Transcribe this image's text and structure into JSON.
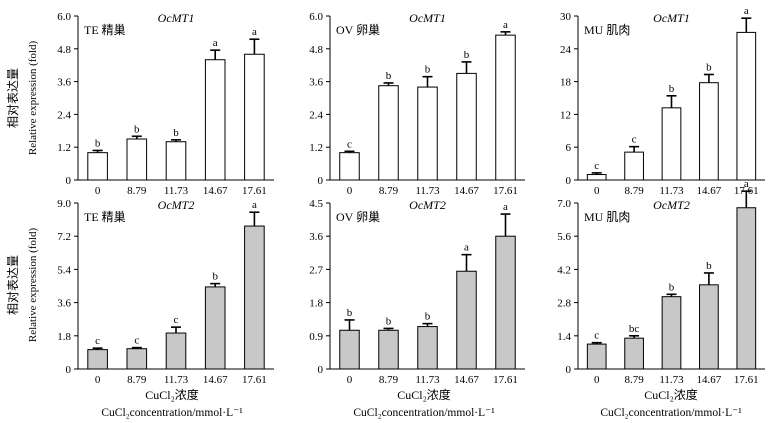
{
  "figure": {
    "y_label_cn": "相对表达量",
    "y_label_en": "Relative expression (fold)",
    "x_label_cn": "CuCl₂浓度",
    "x_label_en": "CuCl₂concentration/mmol·L⁻¹"
  },
  "chart_data": [
    {
      "type": "bar",
      "panel": "TE-OcMT1",
      "tissue_label": "TE 精巢",
      "gene_label": "OcMT1",
      "categories": [
        "0",
        "8.79",
        "11.73",
        "14.67",
        "17.61"
      ],
      "values": [
        1.0,
        1.5,
        1.4,
        4.4,
        4.6
      ],
      "errors": [
        0.08,
        0.1,
        0.07,
        0.35,
        0.55
      ],
      "letters": [
        "b",
        "b",
        "b",
        "a",
        "a"
      ],
      "ylim": [
        0,
        6.0
      ],
      "ticks": [
        "0",
        "1.2",
        "2.4",
        "3.6",
        "4.8",
        "6.0"
      ],
      "bar_color": "#ffffff"
    },
    {
      "type": "bar",
      "panel": "OV-OcMT1",
      "tissue_label": "OV 卵巢",
      "gene_label": "OcMT1",
      "categories": [
        "0",
        "8.79",
        "11.73",
        "14.67",
        "17.61"
      ],
      "values": [
        1.0,
        3.45,
        3.4,
        3.9,
        5.3
      ],
      "errors": [
        0.05,
        0.1,
        0.38,
        0.42,
        0.12
      ],
      "letters": [
        "c",
        "b",
        "b",
        "b",
        "a"
      ],
      "ylim": [
        0,
        6.0
      ],
      "ticks": [
        "0",
        "1.2",
        "2.4",
        "3.6",
        "4.8",
        "6.0"
      ],
      "bar_color": "#ffffff"
    },
    {
      "type": "bar",
      "panel": "MU-OcMT1",
      "tissue_label": "MU 肌肉",
      "gene_label": "OcMT1",
      "categories": [
        "0",
        "8.79",
        "11.73",
        "14.67",
        "17.61"
      ],
      "values": [
        1.0,
        5.1,
        13.2,
        17.8,
        27.0
      ],
      "errors": [
        0.3,
        1.0,
        2.2,
        1.5,
        2.6
      ],
      "letters": [
        "c",
        "c",
        "b",
        "b",
        "a"
      ],
      "ylim": [
        0,
        30
      ],
      "ticks": [
        "0",
        "6",
        "12",
        "18",
        "24",
        "30"
      ],
      "bar_color": "#ffffff"
    },
    {
      "type": "bar",
      "panel": "TE-OcMT2",
      "tissue_label": "TE 精巢",
      "gene_label": "OcMT2",
      "categories": [
        "0",
        "8.79",
        "11.73",
        "14.67",
        "17.61"
      ],
      "values": [
        1.05,
        1.1,
        1.95,
        4.45,
        7.75
      ],
      "errors": [
        0.08,
        0.06,
        0.32,
        0.18,
        0.75
      ],
      "letters": [
        "c",
        "c",
        "c",
        "b",
        "a"
      ],
      "ylim": [
        0,
        9.0
      ],
      "ticks": [
        "0",
        "1.8",
        "3.6",
        "5.4",
        "7.2",
        "9.0"
      ],
      "bar_color": "#c8c8c8"
    },
    {
      "type": "bar",
      "panel": "OV-OcMT2",
      "tissue_label": "OV 卵巢",
      "gene_label": "OcMT2",
      "categories": [
        "0",
        "8.79",
        "11.73",
        "14.67",
        "17.61"
      ],
      "values": [
        1.05,
        1.05,
        1.15,
        2.65,
        3.6
      ],
      "errors": [
        0.28,
        0.05,
        0.08,
        0.45,
        0.6
      ],
      "letters": [
        "b",
        "b",
        "b",
        "a",
        "a"
      ],
      "ylim": [
        0,
        4.5
      ],
      "ticks": [
        "0",
        "0.9",
        "1.8",
        "2.7",
        "3.6",
        "4.5"
      ],
      "bar_color": "#c8c8c8"
    },
    {
      "type": "bar",
      "panel": "MU-OcMT2",
      "tissue_label": "MU 肌肉",
      "gene_label": "OcMT2",
      "categories": [
        "0",
        "8.79",
        "11.73",
        "14.67",
        "17.61"
      ],
      "values": [
        1.05,
        1.3,
        3.05,
        3.55,
        6.8
      ],
      "errors": [
        0.06,
        0.1,
        0.1,
        0.5,
        0.7
      ],
      "letters": [
        "c",
        "bc",
        "b",
        "b",
        "a"
      ],
      "ylim": [
        0,
        7.0
      ],
      "ticks": [
        "0",
        "1.4",
        "2.8",
        "4.2",
        "5.6",
        "7.0"
      ],
      "bar_color": "#c8c8c8"
    }
  ]
}
